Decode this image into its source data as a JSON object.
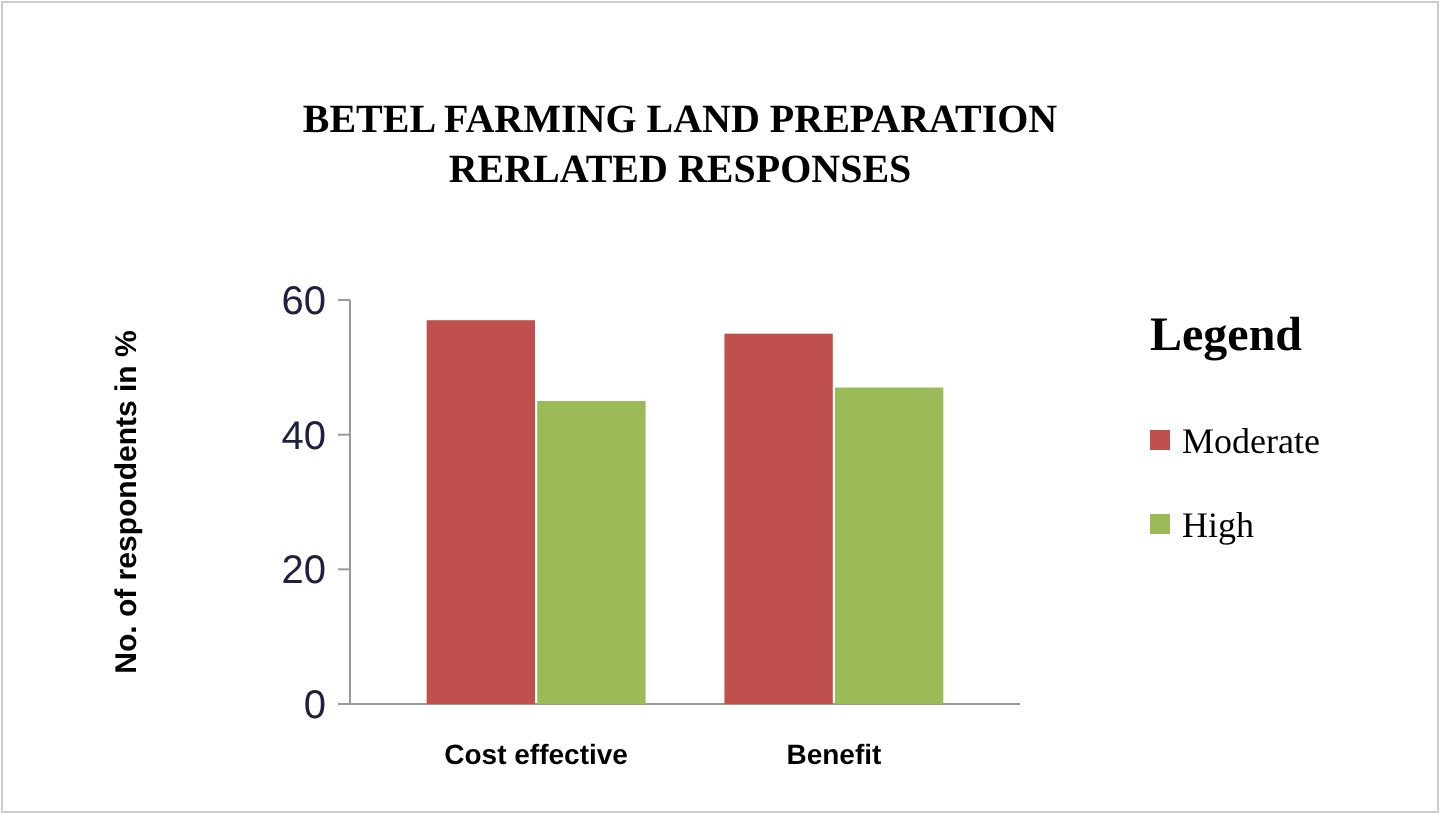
{
  "chart_data": {
    "type": "bar",
    "title": "BETEL FARMING LAND  PREPARATION\nRERLATED RESPONSES",
    "ylabel": "No. of respondents in %",
    "legend_title": "Legend",
    "categories": [
      "Cost effective",
      "Benefit"
    ],
    "series": [
      {
        "name": "Moderate",
        "color": "#c0504d",
        "values": [
          57,
          55
        ]
      },
      {
        "name": "High",
        "color": "#9bbb59",
        "values": [
          45,
          47
        ]
      }
    ],
    "ylim": [
      0,
      60
    ],
    "yticks": [
      0,
      20,
      40,
      60
    ],
    "legend": "right"
  }
}
